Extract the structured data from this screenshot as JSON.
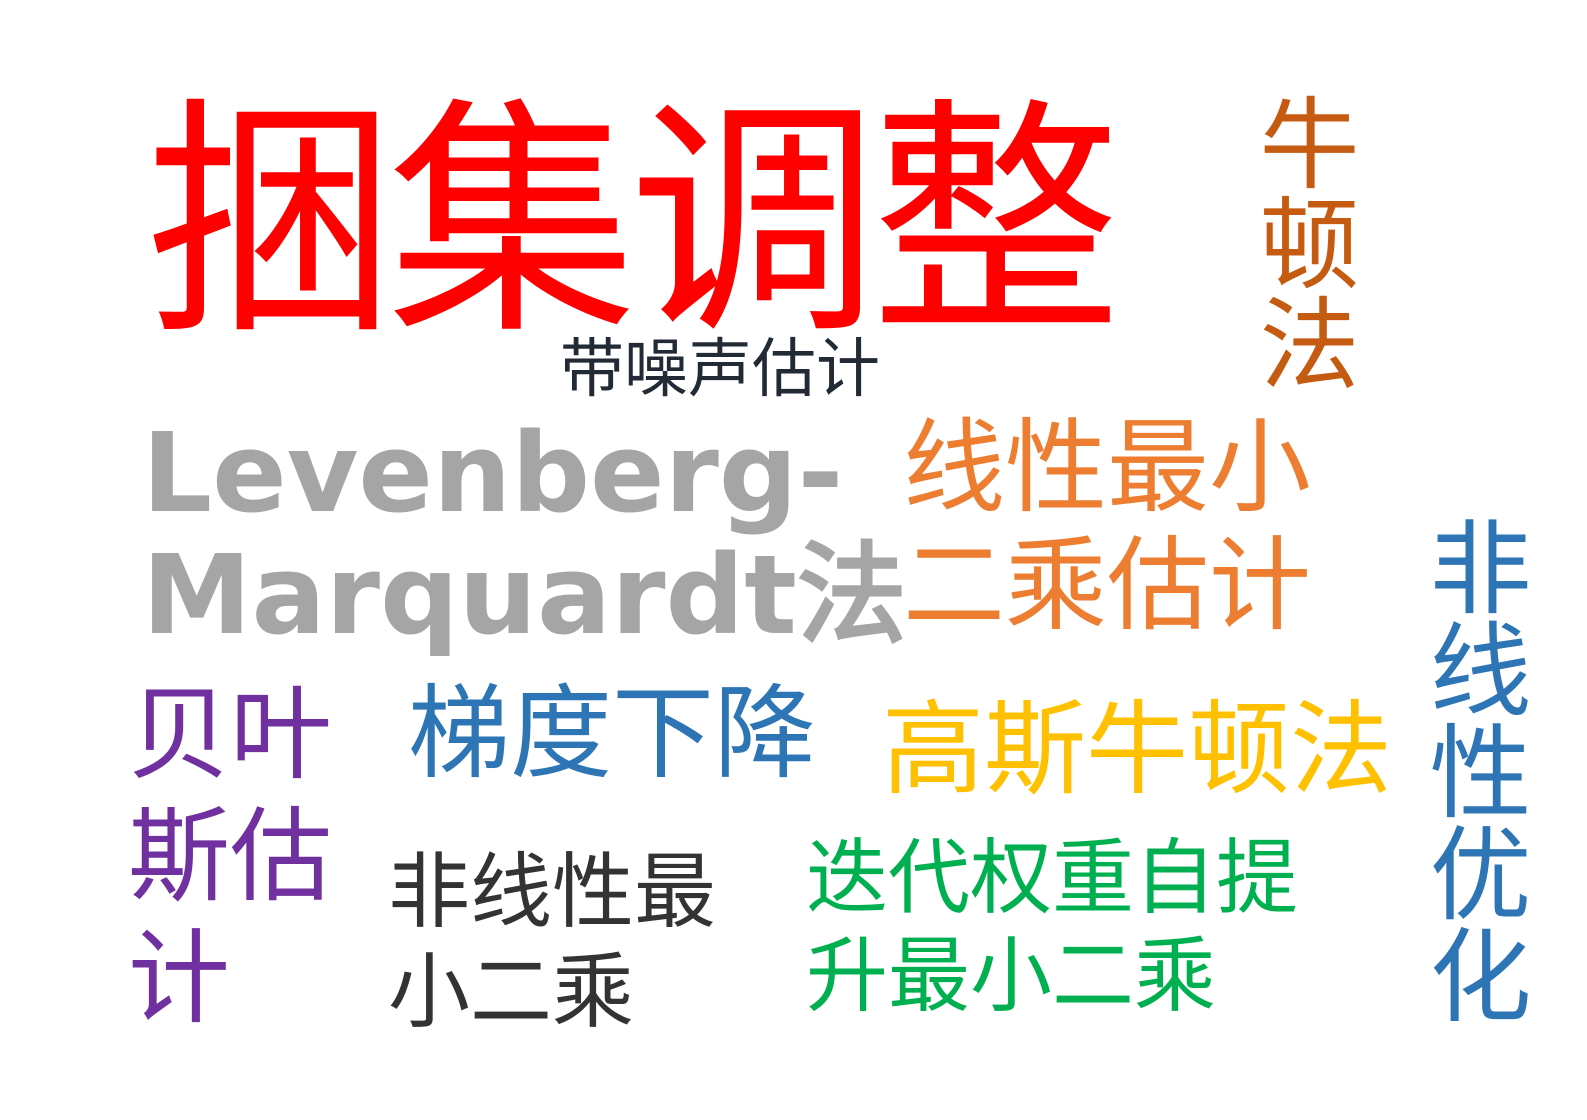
{
  "words": [
    {
      "id": "title",
      "lines": [
        "捆集调整"
      ],
      "color": "#ff0000"
    },
    {
      "id": "noisy",
      "lines": [
        "带噪声估计"
      ],
      "color": "#222a35"
    },
    {
      "id": "lm",
      "lines": [
        "Levenberg-",
        "Marquardt法"
      ],
      "color": "#a5a5a5"
    },
    {
      "id": "lls",
      "lines": [
        "线性最小",
        "二乘估计"
      ],
      "color": "#ed7d31"
    },
    {
      "id": "newton",
      "lines": [
        "牛顿法"
      ],
      "color": "#c55a11"
    },
    {
      "id": "nlopt",
      "lines": [
        "非线性优化"
      ],
      "color": "#2e75b6"
    },
    {
      "id": "bayes",
      "lines": [
        "贝叶",
        "斯估",
        "计"
      ],
      "color": "#7030a0"
    },
    {
      "id": "gd",
      "lines": [
        "梯度下降"
      ],
      "color": "#2e75b6"
    },
    {
      "id": "gn",
      "lines": [
        "高斯牛顿法"
      ],
      "color": "#ffc000"
    },
    {
      "id": "nlls",
      "lines": [
        "非线性最",
        "小二乘"
      ],
      "color": "#333333"
    },
    {
      "id": "irls",
      "lines": [
        "迭代权重自提",
        "升最小二乘"
      ],
      "color": "#00b050"
    }
  ]
}
